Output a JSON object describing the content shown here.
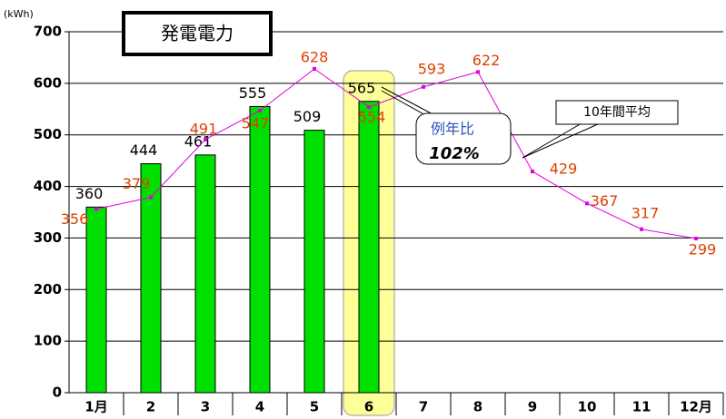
{
  "chart_data": {
    "type": "bar",
    "title": "発電電力",
    "y_unit": "(kWh)",
    "categories": [
      "1月",
      "2",
      "3",
      "4",
      "5",
      "6",
      "7",
      "8",
      "9",
      "10",
      "11",
      "12月"
    ],
    "series": [
      {
        "type": "bar",
        "color": "#00e000",
        "values": [
          360,
          444,
          461,
          555,
          509,
          565,
          null,
          null,
          null,
          null,
          null,
          null
        ]
      },
      {
        "type": "line",
        "name": "10年間平均",
        "color": "#e000e0",
        "values": [
          356,
          379,
          491,
          547,
          628,
          554,
          593,
          622,
          429,
          367,
          317,
          299
        ]
      }
    ],
    "annotations": [
      "例年比",
      "102%"
    ],
    "highlight_category": 5,
    "ylim": [
      0,
      700
    ],
    "yticks": [
      0,
      100,
      200,
      300,
      400,
      500,
      600,
      700
    ],
    "grid": true
  }
}
